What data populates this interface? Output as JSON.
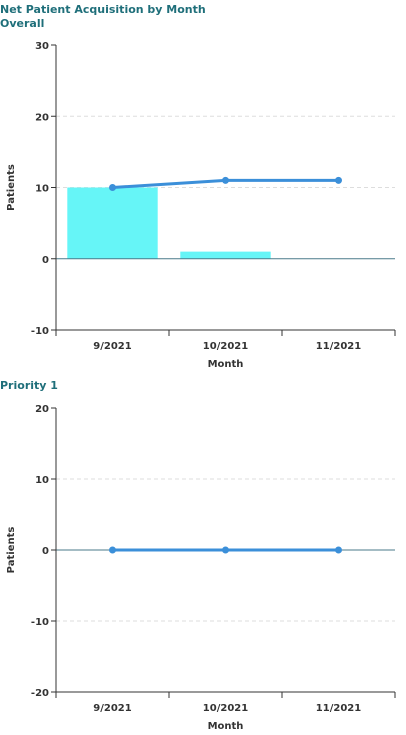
{
  "title": "Net Patient Acquisition by Month",
  "colors": {
    "bar": "#66f5f7",
    "line": "#3b8fd9",
    "zero_line": "#4a7a8a",
    "grid": "#dddddd",
    "heading": "#1f6f7a"
  },
  "chart_data": [
    {
      "type": "bar",
      "title": "Overall",
      "xlabel": "Month",
      "ylabel": "Patients",
      "categories": [
        "9/2021",
        "10/2021",
        "11/2021"
      ],
      "ylim": [
        -10,
        30
      ],
      "yticks": [
        30,
        20,
        10,
        0,
        -10
      ],
      "grid": true,
      "series": [
        {
          "type": "bar",
          "values": [
            10,
            1,
            0
          ]
        },
        {
          "type": "line",
          "values": [
            10,
            11,
            11
          ]
        }
      ]
    },
    {
      "type": "line",
      "title": "Priority 1",
      "xlabel": "Month",
      "ylabel": "Patients",
      "categories": [
        "9/2021",
        "10/2021",
        "11/2021"
      ],
      "ylim": [
        -20,
        20
      ],
      "yticks": [
        20,
        10,
        0,
        -10,
        -20
      ],
      "grid": true,
      "series": [
        {
          "type": "line",
          "values": [
            0,
            0,
            0
          ]
        }
      ]
    }
  ]
}
